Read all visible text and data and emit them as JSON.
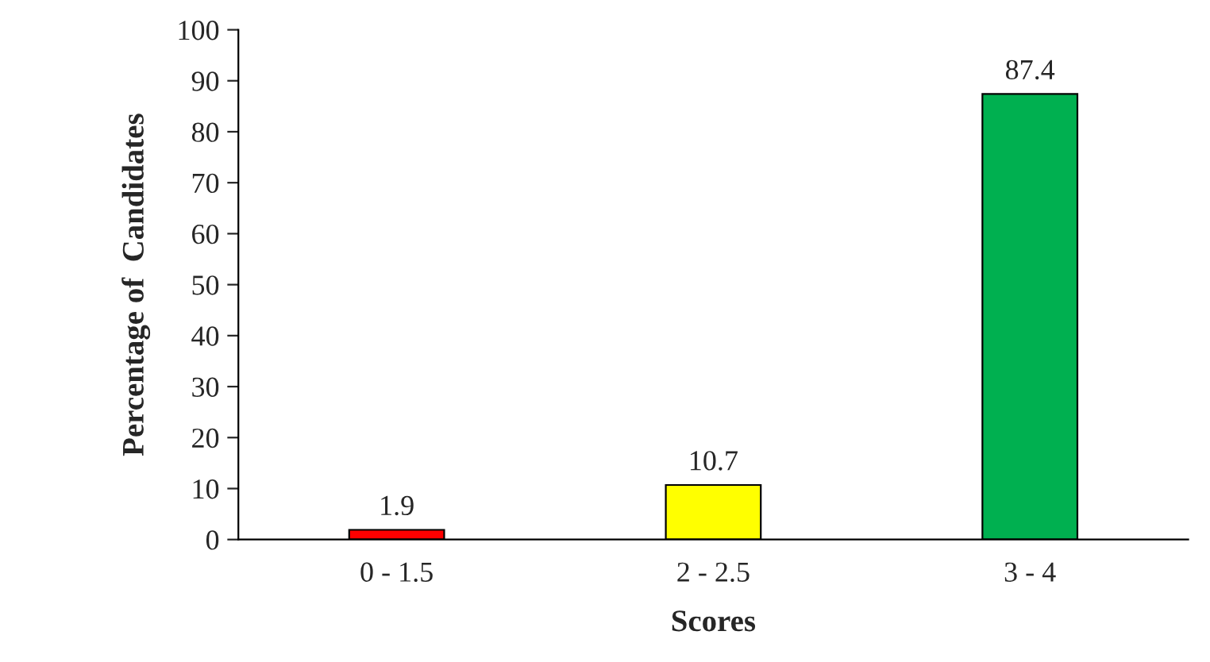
{
  "chart_data": {
    "type": "bar",
    "xlabel": "Scores",
    "ylabel": "Percentage of  Candidates",
    "categories": [
      "0 - 1.5",
      "2 - 2.5",
      "3 - 4"
    ],
    "values": [
      1.9,
      10.7,
      87.4
    ],
    "colors": [
      "#ff0000",
      "#ffff00",
      "#00b050"
    ],
    "ylim": [
      0,
      100
    ],
    "yticks": [
      0,
      10,
      20,
      30,
      40,
      50,
      60,
      70,
      80,
      90,
      100
    ],
    "grid": false,
    "data_labels": true,
    "legend": false
  }
}
